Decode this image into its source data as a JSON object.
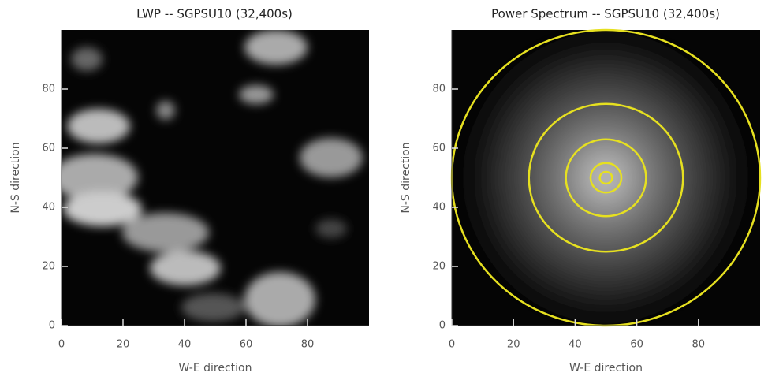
{
  "chart_data": [
    {
      "type": "image",
      "title": "LWP -- SGPSU10 (32,400s)",
      "x_label": "W-E direction",
      "y_label": "N-S direction",
      "xlim": [
        0,
        100
      ],
      "ylim": [
        0,
        100
      ],
      "xticks": [
        0,
        20,
        40,
        60,
        80
      ],
      "yticks": [
        0,
        20,
        40,
        60,
        80
      ]
    },
    {
      "type": "spectrum",
      "title": "Power Spectrum -- SGPSU10 (32,400s)",
      "x_label": "W-E direction",
      "y_label": "N-S direction",
      "xlim": [
        0,
        100
      ],
      "ylim": [
        0,
        100
      ],
      "xticks": [
        0,
        20,
        40,
        60,
        80
      ],
      "yticks": [
        0,
        20,
        40,
        60,
        80
      ],
      "contour_center": [
        50,
        50
      ],
      "contour_radii": [
        50,
        25,
        13,
        5,
        2
      ],
      "contour_color": "#e6e020"
    }
  ]
}
